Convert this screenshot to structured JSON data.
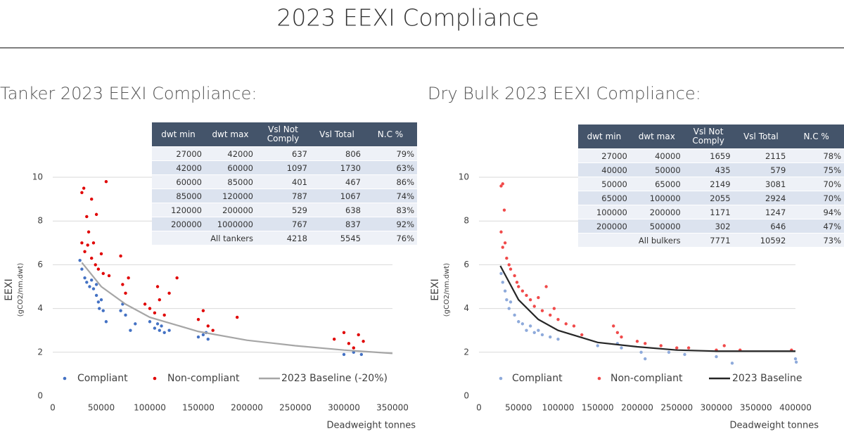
{
  "title": "2023 EEXI Compliance",
  "chart_data": [
    {
      "type": "scatter",
      "title": "Tanker 2023 EEXI Compliance:",
      "ylabel": "EEXI",
      "ylabel_sub": "(gCO2/nm.dwt)",
      "xlabel": "Deadweight tonnes",
      "xlim": [
        0,
        350000
      ],
      "xticks": [
        0,
        50000,
        100000,
        150000,
        200000,
        250000,
        300000,
        350000
      ],
      "ylim": [
        0,
        10
      ],
      "yticks": [
        0,
        2,
        4,
        6,
        8,
        10
      ],
      "grid": true,
      "series": [
        {
          "name": "Compliant",
          "color": "#4472c4",
          "type": "scatter",
          "x": [
            28000,
            30000,
            33000,
            35000,
            38000,
            40000,
            42000,
            45000,
            47000,
            48000,
            50000,
            52000,
            55000,
            45000,
            70000,
            72000,
            75000,
            80000,
            85000,
            100000,
            105000,
            108000,
            110000,
            112000,
            115000,
            120000,
            150000,
            155000,
            160000,
            158000,
            300000,
            310000,
            318000
          ],
          "values": [
            6.2,
            5.8,
            5.4,
            5.2,
            5.0,
            5.3,
            4.9,
            4.6,
            4.3,
            4.0,
            4.4,
            3.9,
            3.4,
            5.1,
            3.9,
            4.2,
            3.7,
            3.0,
            3.3,
            3.4,
            3.1,
            3.3,
            3.0,
            3.2,
            2.9,
            3.0,
            2.7,
            2.8,
            2.6,
            2.9,
            1.9,
            2.0,
            1.9
          ]
        },
        {
          "name": "Non-compliant",
          "color": "#e00000",
          "type": "scatter",
          "x": [
            30000,
            32000,
            35000,
            37000,
            40000,
            42000,
            45000,
            30000,
            33000,
            36000,
            40000,
            44000,
            47000,
            50000,
            52000,
            55000,
            58000,
            70000,
            72000,
            75000,
            78000,
            95000,
            100000,
            105000,
            108000,
            110000,
            115000,
            120000,
            128000,
            150000,
            155000,
            160000,
            165000,
            190000,
            290000,
            300000,
            305000,
            310000,
            315000,
            320000
          ],
          "values": [
            9.3,
            9.5,
            8.2,
            7.5,
            9.0,
            7.0,
            8.3,
            7.0,
            6.6,
            6.9,
            6.3,
            6.0,
            5.8,
            6.5,
            5.6,
            9.8,
            5.5,
            6.4,
            5.1,
            4.7,
            5.4,
            4.2,
            4.0,
            3.8,
            5.0,
            4.4,
            3.7,
            4.7,
            5.4,
            3.5,
            3.9,
            3.2,
            3.0,
            3.6,
            2.6,
            2.9,
            2.4,
            2.2,
            2.8,
            2.5
          ]
        },
        {
          "name": "2023 Baseline (-20%)",
          "color": "#a6a6a6",
          "type": "line",
          "x": [
            30000,
            50000,
            75000,
            100000,
            150000,
            200000,
            250000,
            300000,
            350000
          ],
          "values": [
            6.1,
            5.0,
            4.2,
            3.6,
            2.95,
            2.55,
            2.3,
            2.1,
            1.95
          ]
        }
      ]
    },
    {
      "type": "scatter",
      "title": "Dry Bulk 2023 EEXI Compliance:",
      "ylabel": "EEXI",
      "ylabel_sub": "(gCO2/nm.dwt)",
      "xlabel": "Deadweight tonnes",
      "xlim": [
        0,
        400000
      ],
      "xticks": [
        0,
        50000,
        100000,
        150000,
        200000,
        250000,
        300000,
        350000,
        400000
      ],
      "ylim": [
        0,
        10
      ],
      "yticks": [
        0,
        2,
        4,
        6,
        8,
        10
      ],
      "grid": true,
      "series": [
        {
          "name": "Compliant",
          "color": "#8eaadb",
          "type": "scatter",
          "x": [
            28000,
            30000,
            33000,
            35000,
            38000,
            40000,
            45000,
            50000,
            55000,
            60000,
            65000,
            70000,
            75000,
            80000,
            90000,
            100000,
            150000,
            175000,
            180000,
            205000,
            210000,
            240000,
            260000,
            300000,
            320000,
            400000,
            401000
          ],
          "values": [
            5.6,
            5.2,
            4.8,
            4.4,
            4.0,
            4.3,
            3.7,
            3.4,
            3.3,
            3.0,
            3.2,
            2.9,
            3.0,
            2.8,
            2.7,
            2.6,
            2.3,
            2.4,
            2.2,
            2.0,
            1.7,
            2.0,
            1.9,
            1.8,
            1.5,
            1.7,
            1.55
          ]
        },
        {
          "name": "Non-compliant",
          "color": "#f04a4a",
          "type": "scatter",
          "x": [
            28000,
            30000,
            32000,
            28000,
            30000,
            33000,
            35000,
            38000,
            40000,
            45000,
            48000,
            50000,
            55000,
            60000,
            65000,
            70000,
            75000,
            80000,
            85000,
            90000,
            95000,
            100000,
            110000,
            120000,
            130000,
            170000,
            175000,
            180000,
            200000,
            210000,
            230000,
            250000,
            265000,
            300000,
            310000,
            330000,
            395000
          ],
          "values": [
            9.6,
            9.7,
            8.5,
            7.5,
            6.8,
            7.0,
            6.3,
            6.0,
            5.8,
            5.5,
            5.2,
            5.0,
            4.8,
            4.6,
            4.4,
            4.1,
            4.5,
            3.9,
            5.0,
            3.7,
            4.0,
            3.5,
            3.3,
            3.2,
            2.8,
            3.2,
            2.9,
            2.7,
            2.5,
            2.4,
            2.3,
            2.2,
            2.2,
            2.1,
            2.3,
            2.1,
            2.1
          ]
        },
        {
          "name": "2023 Baseline",
          "color": "#262626",
          "type": "line",
          "x": [
            27000,
            50000,
            75000,
            100000,
            150000,
            200000,
            250000,
            300000,
            350000,
            400000
          ],
          "values": [
            5.95,
            4.4,
            3.5,
            3.0,
            2.45,
            2.25,
            2.1,
            2.05,
            2.05,
            2.05
          ]
        }
      ]
    }
  ],
  "tables": [
    {
      "columns": [
        "dwt min",
        "dwt max",
        "Vsl Not Comply",
        "Vsl Total",
        "N.C %"
      ],
      "rows": [
        [
          27000,
          42000,
          637,
          806,
          "79%"
        ],
        [
          42000,
          60000,
          1097,
          1730,
          "63%"
        ],
        [
          60000,
          85000,
          401,
          467,
          "86%"
        ],
        [
          85000,
          120000,
          787,
          1067,
          "74%"
        ],
        [
          120000,
          200000,
          529,
          638,
          "83%"
        ],
        [
          200000,
          1000000,
          767,
          837,
          "92%"
        ],
        [
          "All tankers",
          4218,
          5545,
          "76%"
        ]
      ]
    },
    {
      "columns": [
        "dwt min",
        "dwt max",
        "Vsl Not Comply",
        "Vsl Total",
        "N.C %"
      ],
      "rows": [
        [
          27000,
          40000,
          1659,
          2115,
          "78%"
        ],
        [
          40000,
          50000,
          435,
          579,
          "75%"
        ],
        [
          50000,
          65000,
          2149,
          3081,
          "70%"
        ],
        [
          65000,
          100000,
          2055,
          2924,
          "70%"
        ],
        [
          100000,
          200000,
          1171,
          1247,
          "94%"
        ],
        [
          200000,
          500000,
          302,
          646,
          "47%"
        ],
        [
          "All bulkers",
          7771,
          10592,
          "73%"
        ]
      ]
    }
  ]
}
